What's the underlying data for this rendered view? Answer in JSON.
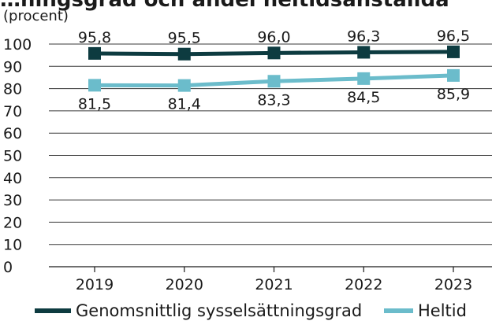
{
  "chart_data": {
    "type": "line",
    "title": "…ningsgrad och andel heltidsanställda",
    "ylabel": "(procent)",
    "xlabel": "",
    "categories": [
      "2019",
      "2020",
      "2021",
      "2022",
      "2023"
    ],
    "ylim": [
      0,
      100
    ],
    "yticks": [
      0,
      10,
      20,
      30,
      40,
      50,
      60,
      70,
      80,
      90,
      100
    ],
    "grid": true,
    "legend_position": "bottom",
    "series": [
      {
        "name": "Genomsnittlig sysselsättningsgrad",
        "values": [
          95.8,
          95.5,
          96.0,
          96.3,
          96.5
        ],
        "labels": [
          "95,8",
          "95,5",
          "96,0",
          "96,3",
          "96,5"
        ],
        "label_position": "above",
        "color": "#0d3b40"
      },
      {
        "name": "Heltid",
        "values": [
          81.5,
          81.4,
          83.3,
          84.5,
          85.9
        ],
        "labels": [
          "81,5",
          "81,4",
          "83,3",
          "84,5",
          "85,9"
        ],
        "label_position": "below",
        "color": "#6bbccb"
      }
    ]
  }
}
